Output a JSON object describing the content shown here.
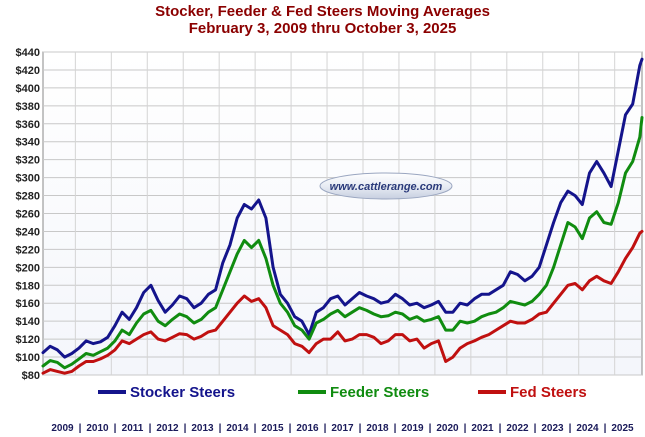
{
  "chart_data": {
    "type": "line",
    "title": "Stocker, Feeder & Fed Steers Moving Averages",
    "subtitle": "February 3, 2009 thru October 3, 2025",
    "watermark": "www.cattlerange.com",
    "y_ticks": [
      "$80",
      "$100",
      "$120",
      "$140",
      "$160",
      "$180",
      "$200",
      "$220",
      "$240",
      "$260",
      "$280",
      "$300",
      "$320",
      "$340",
      "$360",
      "$380",
      "$400",
      "$420",
      "$440"
    ],
    "ylim": [
      80,
      440
    ],
    "xlim": [
      2009.1,
      2025.76
    ],
    "x_ticks": [
      "2009",
      "2010",
      "2011",
      "2012",
      "2013",
      "2014",
      "2015",
      "2016",
      "2017",
      "2018",
      "2019",
      "2020",
      "2021",
      "2022",
      "2023",
      "2024",
      "2025"
    ],
    "grid": true,
    "legend_placement": "bottom",
    "series": [
      {
        "name": "Stocker Steers",
        "color": "#14148c",
        "x": [
          2009.1,
          2009.3,
          2009.5,
          2009.7,
          2009.9,
          2010.1,
          2010.3,
          2010.5,
          2010.7,
          2010.9,
          2011.1,
          2011.3,
          2011.5,
          2011.7,
          2011.9,
          2012.1,
          2012.3,
          2012.5,
          2012.7,
          2012.9,
          2013.1,
          2013.3,
          2013.5,
          2013.7,
          2013.9,
          2014.1,
          2014.3,
          2014.5,
          2014.7,
          2014.9,
          2015.1,
          2015.3,
          2015.5,
          2015.7,
          2015.9,
          2016.1,
          2016.3,
          2016.5,
          2016.7,
          2016.9,
          2017.1,
          2017.3,
          2017.5,
          2017.7,
          2017.9,
          2018.1,
          2018.3,
          2018.5,
          2018.7,
          2018.9,
          2019.1,
          2019.3,
          2019.5,
          2019.7,
          2019.9,
          2020.1,
          2020.3,
          2020.5,
          2020.7,
          2020.9,
          2021.1,
          2021.3,
          2021.5,
          2021.7,
          2021.9,
          2022.1,
          2022.3,
          2022.5,
          2022.7,
          2022.9,
          2023.1,
          2023.3,
          2023.5,
          2023.7,
          2023.9,
          2024.1,
          2024.3,
          2024.5,
          2024.7,
          2024.9,
          2025.1,
          2025.3,
          2025.5,
          2025.7,
          2025.76
        ],
        "values": [
          105,
          112,
          108,
          100,
          104,
          110,
          118,
          115,
          117,
          122,
          135,
          150,
          142,
          155,
          172,
          180,
          163,
          150,
          158,
          168,
          165,
          155,
          160,
          170,
          175,
          205,
          225,
          255,
          270,
          265,
          275,
          255,
          200,
          170,
          160,
          145,
          140,
          125,
          150,
          155,
          165,
          168,
          158,
          165,
          172,
          168,
          165,
          160,
          162,
          170,
          165,
          158,
          160,
          155,
          158,
          162,
          150,
          150,
          160,
          158,
          165,
          170,
          170,
          175,
          180,
          195,
          192,
          185,
          190,
          200,
          225,
          250,
          272,
          285,
          280,
          270,
          305,
          318,
          305,
          290,
          330,
          370,
          382,
          425,
          432
        ]
      },
      {
        "name": "Feeder Steers",
        "color": "#108c10",
        "x": [
          2009.1,
          2009.3,
          2009.5,
          2009.7,
          2009.9,
          2010.1,
          2010.3,
          2010.5,
          2010.7,
          2010.9,
          2011.1,
          2011.3,
          2011.5,
          2011.7,
          2011.9,
          2012.1,
          2012.3,
          2012.5,
          2012.7,
          2012.9,
          2013.1,
          2013.3,
          2013.5,
          2013.7,
          2013.9,
          2014.1,
          2014.3,
          2014.5,
          2014.7,
          2014.9,
          2015.1,
          2015.3,
          2015.5,
          2015.7,
          2015.9,
          2016.1,
          2016.3,
          2016.5,
          2016.7,
          2016.9,
          2017.1,
          2017.3,
          2017.5,
          2017.7,
          2017.9,
          2018.1,
          2018.3,
          2018.5,
          2018.7,
          2018.9,
          2019.1,
          2019.3,
          2019.5,
          2019.7,
          2019.9,
          2020.1,
          2020.3,
          2020.5,
          2020.7,
          2020.9,
          2021.1,
          2021.3,
          2021.5,
          2021.7,
          2021.9,
          2022.1,
          2022.3,
          2022.5,
          2022.7,
          2022.9,
          2023.1,
          2023.3,
          2023.5,
          2023.7,
          2023.9,
          2024.1,
          2024.3,
          2024.5,
          2024.7,
          2024.9,
          2025.1,
          2025.3,
          2025.5,
          2025.7,
          2025.76
        ],
        "values": [
          90,
          96,
          94,
          88,
          92,
          98,
          104,
          102,
          106,
          110,
          118,
          130,
          125,
          138,
          148,
          152,
          140,
          135,
          142,
          148,
          145,
          138,
          142,
          150,
          155,
          175,
          195,
          215,
          230,
          222,
          230,
          210,
          180,
          160,
          150,
          135,
          130,
          120,
          138,
          142,
          148,
          152,
          145,
          150,
          155,
          152,
          148,
          145,
          146,
          150,
          148,
          142,
          145,
          140,
          142,
          145,
          130,
          130,
          140,
          138,
          140,
          145,
          148,
          150,
          155,
          162,
          160,
          158,
          162,
          170,
          180,
          200,
          225,
          250,
          245,
          232,
          255,
          262,
          250,
          248,
          272,
          305,
          318,
          345,
          367
        ]
      },
      {
        "name": "Fed Steers",
        "color": "#c01010",
        "x": [
          2009.1,
          2009.3,
          2009.5,
          2009.7,
          2009.9,
          2010.1,
          2010.3,
          2010.5,
          2010.7,
          2010.9,
          2011.1,
          2011.3,
          2011.5,
          2011.7,
          2011.9,
          2012.1,
          2012.3,
          2012.5,
          2012.7,
          2012.9,
          2013.1,
          2013.3,
          2013.5,
          2013.7,
          2013.9,
          2014.1,
          2014.3,
          2014.5,
          2014.7,
          2014.9,
          2015.1,
          2015.3,
          2015.5,
          2015.7,
          2015.9,
          2016.1,
          2016.3,
          2016.5,
          2016.7,
          2016.9,
          2017.1,
          2017.3,
          2017.5,
          2017.7,
          2017.9,
          2018.1,
          2018.3,
          2018.5,
          2018.7,
          2018.9,
          2019.1,
          2019.3,
          2019.5,
          2019.7,
          2019.9,
          2020.1,
          2020.3,
          2020.5,
          2020.7,
          2020.9,
          2021.1,
          2021.3,
          2021.5,
          2021.7,
          2021.9,
          2022.1,
          2022.3,
          2022.5,
          2022.7,
          2022.9,
          2023.1,
          2023.3,
          2023.5,
          2023.7,
          2023.9,
          2024.1,
          2024.3,
          2024.5,
          2024.7,
          2024.9,
          2025.1,
          2025.3,
          2025.5,
          2025.7,
          2025.76
        ],
        "values": [
          82,
          86,
          84,
          82,
          84,
          90,
          95,
          95,
          98,
          102,
          108,
          118,
          115,
          120,
          125,
          128,
          120,
          118,
          122,
          126,
          125,
          120,
          123,
          128,
          130,
          140,
          150,
          160,
          168,
          162,
          165,
          155,
          135,
          130,
          125,
          115,
          112,
          105,
          115,
          120,
          120,
          128,
          118,
          120,
          125,
          125,
          122,
          115,
          118,
          125,
          125,
          118,
          120,
          110,
          115,
          118,
          95,
          100,
          110,
          115,
          118,
          122,
          125,
          130,
          135,
          140,
          138,
          138,
          142,
          148,
          150,
          160,
          170,
          180,
          182,
          175,
          185,
          190,
          185,
          182,
          195,
          210,
          222,
          238,
          240
        ]
      }
    ]
  }
}
